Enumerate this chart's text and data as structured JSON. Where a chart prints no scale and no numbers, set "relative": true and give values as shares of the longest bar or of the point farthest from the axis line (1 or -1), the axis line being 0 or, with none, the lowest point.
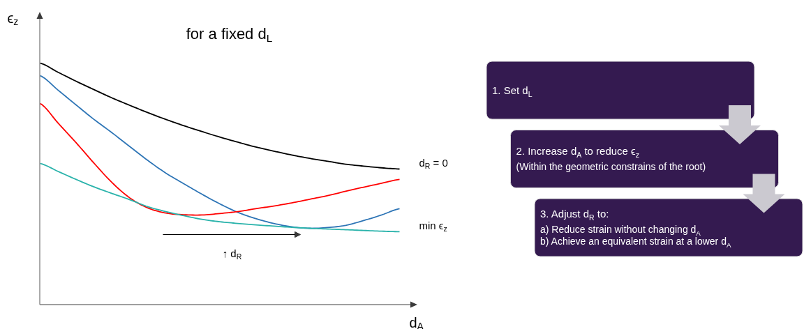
{
  "chart_data": [
    {
      "type": "line",
      "title": "for a fixed d$_{L}$",
      "xlabel": "d$_{A}$",
      "ylabel": "ϵ$_{z}$",
      "relative": true,
      "categories": [
        null,
        null,
        null,
        null,
        null,
        null,
        null,
        null,
        null,
        null,
        null,
        null,
        null,
        null,
        null,
        null,
        null,
        null,
        null,
        null,
        null
      ],
      "series": [
        {
          "name": "d$_{R}$ = 0",
          "color": "#000000",
          "values": [
            1.0,
            0.962,
            0.925,
            0.89,
            0.856,
            0.825,
            0.795,
            0.767,
            0.741,
            0.717,
            0.694,
            0.673,
            0.653,
            0.636,
            0.62,
            0.606,
            0.594,
            0.582,
            0.574,
            0.567,
            0.562
          ]
        },
        {
          "color": "#2e75b6",
          "values": [
            0.948,
            0.888,
            0.827,
            0.767,
            0.712,
            0.654,
            0.597,
            0.545,
            0.501,
            0.458,
            0.418,
            0.383,
            0.357,
            0.337,
            0.323,
            0.317,
            0.32,
            0.329,
            0.349,
            0.372,
            0.398
          ]
        },
        {
          "color": "#ff0000",
          "values": [
            0.833,
            0.752,
            0.671,
            0.586,
            0.506,
            0.442,
            0.401,
            0.38,
            0.373,
            0.372,
            0.378,
            0.386,
            0.398,
            0.409,
            0.422,
            0.437,
            0.452,
            0.47,
            0.487,
            0.503,
            0.519
          ]
        },
        {
          "name": "min ϵ$_{z}$",
          "color": "#2ab3ab",
          "values": [
            0.585,
            0.552,
            0.519,
            0.488,
            0.461,
            0.435,
            0.406,
            0.386,
            0.369,
            0.354,
            0.344,
            0.337,
            0.331,
            0.326,
            0.321,
            0.317,
            0.314,
            0.311,
            0.308,
            0.305,
            0.303
          ]
        }
      ],
      "annotations": [
        "↑ d$_{R}$"
      ]
    },
    {
      "type": "other",
      "title": "1. Set d$_{L}$"
    },
    {
      "type": "other",
      "title": "2. Increase d$_{A}$ to reduce ϵ$_{z}$",
      "annotations": [
        "(Within the geometric constrains of the root)"
      ]
    },
    {
      "type": "other",
      "title": "3. Adjust d$_{R}$ to:",
      "annotations": [
        "a) Reduce strain without changing d$_{A}$",
        "b) Achieve an equivalent strain at a lower d$_{A}$"
      ]
    }
  ]
}
